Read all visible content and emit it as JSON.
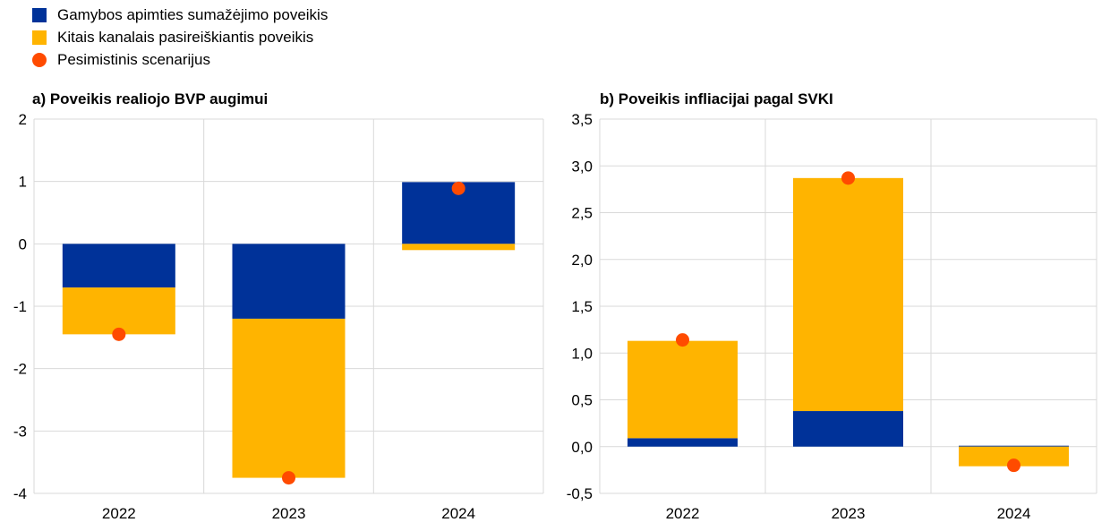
{
  "legend": [
    {
      "label": "Gamybos apimties sumažėjimo poveikis",
      "color": "#003299",
      "kind": "bar"
    },
    {
      "label": "Kitais kanalais pasireiškiantis poveikis",
      "color": "#FFB400",
      "kind": "bar"
    },
    {
      "label": "Pesimistinis scenarijus",
      "color": "#FF4B00",
      "kind": "dot"
    }
  ],
  "chart_data": [
    {
      "type": "bar",
      "stacked": true,
      "title": "a) Poveikis realiojo BVP augimui",
      "categories": [
        "2022",
        "2023",
        "2024"
      ],
      "ylim": [
        -4,
        2
      ],
      "yticks": [
        2,
        1,
        0,
        -1,
        -2,
        -3,
        -4
      ],
      "ytick_labels": [
        "2",
        "1",
        "0",
        "-1",
        "-2",
        "-3",
        "-4"
      ],
      "grid": true,
      "series": [
        {
          "name": "Gamybos apimties sumažėjimo poveikis",
          "values": [
            -0.7,
            -1.2,
            0.99
          ]
        },
        {
          "name": "Kitais kanalais pasireiškiantis poveikis",
          "values": [
            -0.75,
            -2.55,
            -0.1
          ]
        },
        {
          "name": "Pesimistinis scenarijus",
          "type": "scatter",
          "values": [
            -1.45,
            -3.75,
            0.89
          ]
        }
      ]
    },
    {
      "type": "bar",
      "stacked": true,
      "title": "b) Poveikis infliacijai pagal SVKI",
      "categories": [
        "2022",
        "2023",
        "2024"
      ],
      "ylim": [
        -0.5,
        3.5
      ],
      "yticks": [
        3.5,
        3,
        2.5,
        2,
        1.5,
        1,
        0.5,
        0,
        -0.5
      ],
      "ytick_labels": [
        "3,5",
        "3,0",
        "2,5",
        "2,0",
        "1,5",
        "1,0",
        "0,5",
        "0,0",
        "-0,5"
      ],
      "grid": true,
      "series": [
        {
          "name": "Gamybos apimties sumažėjimo poveikis",
          "values": [
            0.09,
            0.38,
            0.01
          ]
        },
        {
          "name": "Kitais kanalais pasireiškiantis poveikis",
          "values": [
            1.04,
            2.49,
            -0.21
          ]
        },
        {
          "name": "Pesimistinis scenarijus",
          "type": "scatter",
          "values": [
            1.14,
            2.87,
            -0.2
          ]
        }
      ]
    }
  ]
}
